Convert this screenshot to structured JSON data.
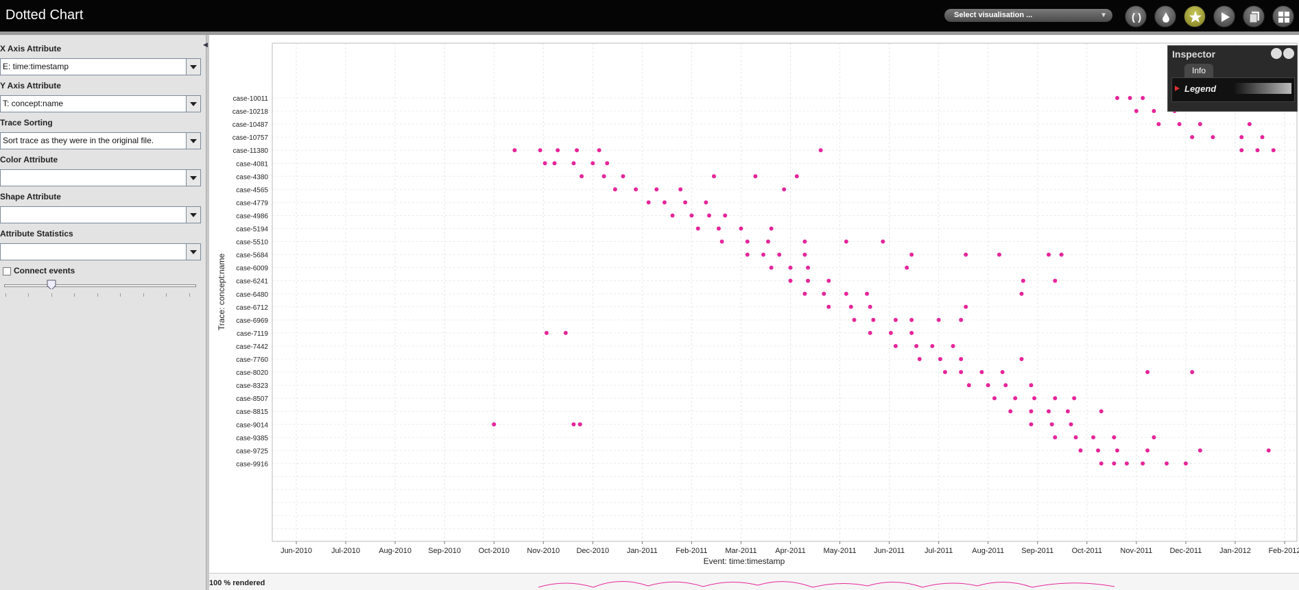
{
  "app": {
    "title": "Dotted Chart",
    "visualisation_select": "Select visualisation ..."
  },
  "toolbar": {
    "buttons": [
      "parentheses-icon",
      "drop-icon",
      "star-icon",
      "play-icon",
      "copy-icon",
      "grid-icon"
    ]
  },
  "panel": {
    "x_axis_label": "X Axis Attribute",
    "x_axis_value": "E: time:timestamp",
    "y_axis_label": "Y Axis Attribute",
    "y_axis_value": "T: concept:name",
    "trace_sorting_label": "Trace Sorting",
    "trace_sorting_value": "Sort trace as they were in the original file.",
    "color_label": "Color Attribute",
    "color_value": "",
    "shape_label": "Shape Attribute",
    "shape_value": "",
    "stats_label": "Attribute Statistics",
    "stats_value": "",
    "connect_label": "Connect events",
    "connect_checked": false,
    "slider_value": 0.25
  },
  "inspector": {
    "title": "Inspector",
    "tab": "Info",
    "legend": "Legend"
  },
  "status": {
    "rendered": "100 % rendered"
  },
  "chart_data": {
    "type": "scatter",
    "xlabel": "Event: time:timestamp",
    "ylabel": "Trace: concept:name",
    "x_ticks": [
      "Jun-2010",
      "Jul-2010",
      "Aug-2010",
      "Sep-2010",
      "Oct-2010",
      "Nov-2010",
      "Dec-2010",
      "Jan-2011",
      "Feb-2011",
      "Mar-2011",
      "Apr-2011",
      "May-2011",
      "Jun-2011",
      "Jul-2011",
      "Aug-2011",
      "Sep-2011",
      "Oct-2011",
      "Nov-2011",
      "Dec-2011",
      "Jan-2012",
      "Feb-2012"
    ],
    "y_ticks": [
      "case-10011",
      "case-10218",
      "case-10487",
      "case-10757",
      "case-11380",
      "case-4081",
      "case-4380",
      "case-4565",
      "case-4779",
      "case-4986",
      "case-5194",
      "case-5510",
      "case-5684",
      "case-6009",
      "case-6241",
      "case-6480",
      "case-6712",
      "case-6969",
      "case-7119",
      "case-7442",
      "case-7760",
      "case-8020",
      "case-8323",
      "case-8507",
      "case-8815",
      "case-9014",
      "case-9385",
      "case-9725",
      "case-9916"
    ],
    "grid": true,
    "color": "#e6259a",
    "series": [
      {
        "points": [
          [
            "2010-10-14",
            "case-11380"
          ],
          [
            "2010-10-30",
            "case-11380"
          ],
          [
            "2010-11-10",
            "case-11380"
          ],
          [
            "2010-11-22",
            "case-11380"
          ],
          [
            "2010-12-05",
            "case-11380"
          ],
          [
            "2010-11-08",
            "case-4081"
          ],
          [
            "2010-11-20",
            "case-4081"
          ],
          [
            "2010-12-01",
            "case-4081"
          ],
          [
            "2010-12-10",
            "case-4081"
          ],
          [
            "2011-04-20",
            "case-11380"
          ],
          [
            "2010-11-02",
            "case-4081"
          ],
          [
            "2010-11-25",
            "case-4380"
          ],
          [
            "2010-12-08",
            "case-4380"
          ],
          [
            "2010-12-20",
            "case-4380"
          ],
          [
            "2011-02-15",
            "case-4380"
          ],
          [
            "2011-03-10",
            "case-4380"
          ],
          [
            "2011-04-05",
            "case-4380"
          ],
          [
            "2010-12-15",
            "case-4565"
          ],
          [
            "2010-12-28",
            "case-4565"
          ],
          [
            "2011-01-10",
            "case-4565"
          ],
          [
            "2011-01-25",
            "case-4565"
          ],
          [
            "2011-01-05",
            "case-4779"
          ],
          [
            "2011-01-15",
            "case-4779"
          ],
          [
            "2011-01-28",
            "case-4779"
          ],
          [
            "2011-02-10",
            "case-4779"
          ],
          [
            "2011-01-20",
            "case-4986"
          ],
          [
            "2011-02-01",
            "case-4986"
          ],
          [
            "2011-02-12",
            "case-4986"
          ],
          [
            "2011-02-22",
            "case-4986"
          ],
          [
            "2011-02-05",
            "case-5194"
          ],
          [
            "2011-02-18",
            "case-5194"
          ],
          [
            "2011-03-01",
            "case-5194"
          ],
          [
            "2011-03-20",
            "case-5194"
          ],
          [
            "2011-03-28",
            "case-4565"
          ],
          [
            "2011-02-20",
            "case-5510"
          ],
          [
            "2011-03-05",
            "case-5510"
          ],
          [
            "2011-03-18",
            "case-5510"
          ],
          [
            "2011-04-10",
            "case-5510"
          ],
          [
            "2011-05-05",
            "case-5510"
          ],
          [
            "2011-05-28",
            "case-5510"
          ],
          [
            "2011-03-05",
            "case-5684"
          ],
          [
            "2011-03-15",
            "case-5684"
          ],
          [
            "2011-03-25",
            "case-5684"
          ],
          [
            "2011-04-10",
            "case-5684"
          ],
          [
            "2011-06-15",
            "case-5684"
          ],
          [
            "2011-07-18",
            "case-5684"
          ],
          [
            "2011-08-08",
            "case-5684"
          ],
          [
            "2011-09-08",
            "case-5684"
          ],
          [
            "2011-09-16",
            "case-5684"
          ],
          [
            "2011-03-20",
            "case-6009"
          ],
          [
            "2011-04-01",
            "case-6009"
          ],
          [
            "2011-04-12",
            "case-6009"
          ],
          [
            "2011-06-12",
            "case-6009"
          ],
          [
            "2011-04-01",
            "case-6241"
          ],
          [
            "2011-04-12",
            "case-6241"
          ],
          [
            "2011-04-25",
            "case-6241"
          ],
          [
            "2011-08-23",
            "case-6241"
          ],
          [
            "2011-09-12",
            "case-6241"
          ],
          [
            "2011-04-10",
            "case-6480"
          ],
          [
            "2011-04-22",
            "case-6480"
          ],
          [
            "2011-05-05",
            "case-6480"
          ],
          [
            "2011-05-18",
            "case-6480"
          ],
          [
            "2011-08-22",
            "case-6480"
          ],
          [
            "2011-04-25",
            "case-6712"
          ],
          [
            "2011-05-08",
            "case-6712"
          ],
          [
            "2011-05-20",
            "case-6712"
          ],
          [
            "2011-07-18",
            "case-6712"
          ],
          [
            "2011-05-10",
            "case-6969"
          ],
          [
            "2011-05-22",
            "case-6969"
          ],
          [
            "2011-06-05",
            "case-6969"
          ],
          [
            "2011-06-15",
            "case-6969"
          ],
          [
            "2011-07-01",
            "case-6969"
          ],
          [
            "2011-07-15",
            "case-6969"
          ],
          [
            "2011-05-20",
            "case-7119"
          ],
          [
            "2011-06-02",
            "case-7119"
          ],
          [
            "2011-06-15",
            "case-7119"
          ],
          [
            "2010-11-03",
            "case-7119"
          ],
          [
            "2010-11-15",
            "case-7119"
          ],
          [
            "2011-06-05",
            "case-7442"
          ],
          [
            "2011-06-18",
            "case-7442"
          ],
          [
            "2011-06-28",
            "case-7442"
          ],
          [
            "2011-07-10",
            "case-7442"
          ],
          [
            "2011-06-20",
            "case-7760"
          ],
          [
            "2011-07-02",
            "case-7760"
          ],
          [
            "2011-07-15",
            "case-7760"
          ],
          [
            "2011-08-22",
            "case-7760"
          ],
          [
            "2011-07-05",
            "case-8020"
          ],
          [
            "2011-07-15",
            "case-8020"
          ],
          [
            "2011-07-28",
            "case-8020"
          ],
          [
            "2011-08-10",
            "case-8020"
          ],
          [
            "2011-07-20",
            "case-8323"
          ],
          [
            "2011-08-01",
            "case-8323"
          ],
          [
            "2011-08-12",
            "case-8323"
          ],
          [
            "2011-08-28",
            "case-8323"
          ],
          [
            "2011-11-08",
            "case-8020"
          ],
          [
            "2011-12-05",
            "case-8020"
          ],
          [
            "2011-08-05",
            "case-8507"
          ],
          [
            "2011-08-18",
            "case-8507"
          ],
          [
            "2011-08-30",
            "case-8507"
          ],
          [
            "2011-09-12",
            "case-8507"
          ],
          [
            "2011-09-24",
            "case-8507"
          ],
          [
            "2011-08-15",
            "case-8815"
          ],
          [
            "2011-08-28",
            "case-8815"
          ],
          [
            "2011-09-08",
            "case-8815"
          ],
          [
            "2011-09-20",
            "case-8815"
          ],
          [
            "2011-10-10",
            "case-8815"
          ],
          [
            "2011-08-28",
            "case-9014"
          ],
          [
            "2011-09-10",
            "case-9014"
          ],
          [
            "2011-09-22",
            "case-9014"
          ],
          [
            "2010-10-01",
            "case-9014"
          ],
          [
            "2010-11-20",
            "case-9014"
          ],
          [
            "2010-11-24",
            "case-9014"
          ],
          [
            "2011-09-12",
            "case-9385"
          ],
          [
            "2011-09-25",
            "case-9385"
          ],
          [
            "2011-10-05",
            "case-9385"
          ],
          [
            "2011-10-18",
            "case-9385"
          ],
          [
            "2011-11-12",
            "case-9385"
          ],
          [
            "2011-09-28",
            "case-9725"
          ],
          [
            "2011-10-08",
            "case-9725"
          ],
          [
            "2011-10-20",
            "case-9725"
          ],
          [
            "2011-11-08",
            "case-9725"
          ],
          [
            "2011-12-10",
            "case-9725"
          ],
          [
            "2012-01-22",
            "case-9725"
          ],
          [
            "2011-10-10",
            "case-9916"
          ],
          [
            "2011-10-18",
            "case-9916"
          ],
          [
            "2011-10-26",
            "case-9916"
          ],
          [
            "2011-11-05",
            "case-9916"
          ],
          [
            "2011-11-20",
            "case-9916"
          ],
          [
            "2011-12-01",
            "case-9916"
          ],
          [
            "2011-10-20",
            "case-10011"
          ],
          [
            "2011-10-28",
            "case-10011"
          ],
          [
            "2011-11-05",
            "case-10011"
          ],
          [
            "2011-11-01",
            "case-10218"
          ],
          [
            "2011-11-12",
            "case-10218"
          ],
          [
            "2011-11-25",
            "case-10218"
          ],
          [
            "2011-11-15",
            "case-10487"
          ],
          [
            "2011-11-28",
            "case-10487"
          ],
          [
            "2011-12-10",
            "case-10487"
          ],
          [
            "2012-01-10",
            "case-10487"
          ],
          [
            "2011-12-05",
            "case-10757"
          ],
          [
            "2011-12-18",
            "case-10757"
          ],
          [
            "2012-01-05",
            "case-10757"
          ],
          [
            "2012-01-18",
            "case-10757"
          ],
          [
            "2012-01-05",
            "case-11380"
          ],
          [
            "2012-01-15",
            "case-11380"
          ],
          [
            "2012-01-25",
            "case-11380"
          ]
        ]
      }
    ]
  }
}
